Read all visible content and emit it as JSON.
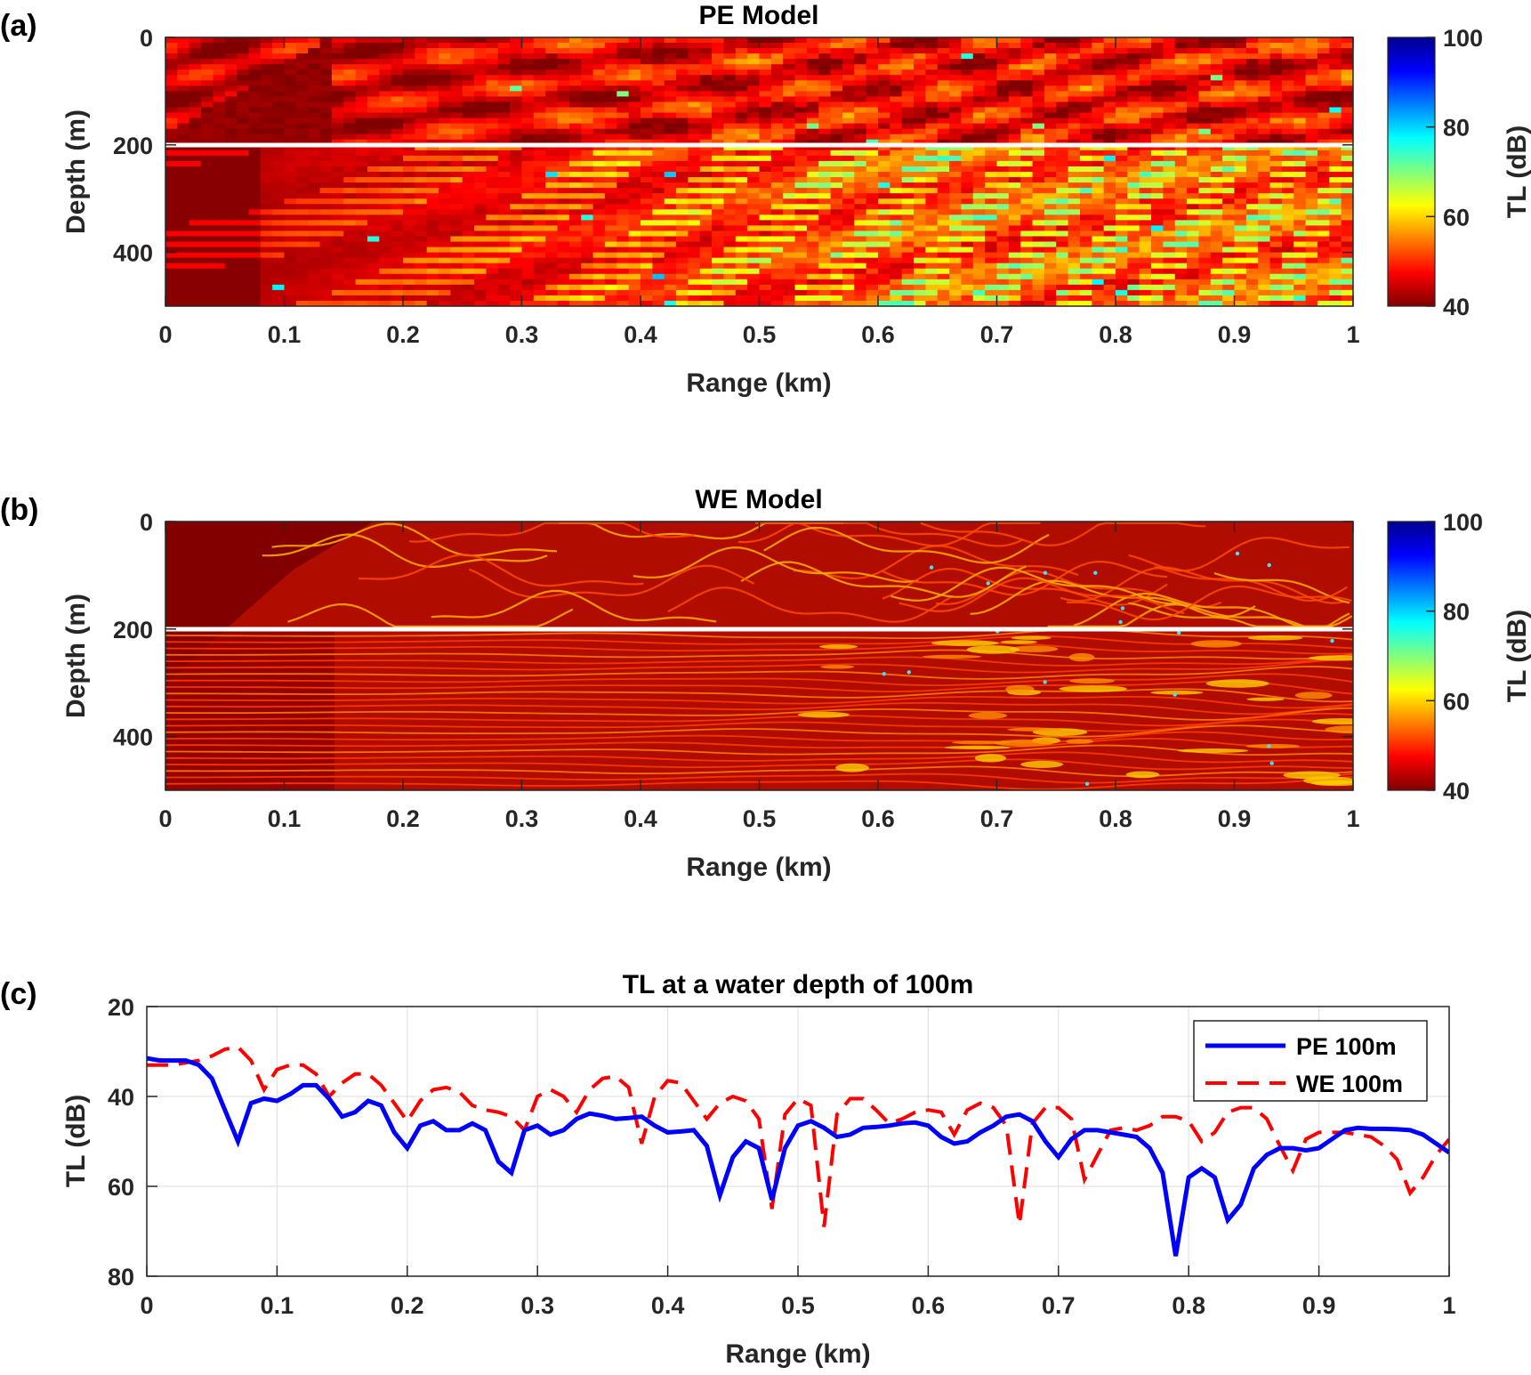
{
  "panels": {
    "a": {
      "label": "(a)"
    },
    "b": {
      "label": "(b)"
    },
    "c": {
      "label": "(c)"
    }
  },
  "colors": {
    "pe_line": "#0000ff",
    "we_line": "#ff0000",
    "interface_line": "#ffffff",
    "colormap": "jet (reversed): 40 dB dark red to 100 dB dark blue"
  },
  "chart_data": [
    {
      "type": "heatmap",
      "title": "PE Model",
      "xlabel": "Range (km)",
      "ylabel": "Depth (m)",
      "xlim": [
        0,
        1
      ],
      "ylim": [
        500,
        0
      ],
      "xticks": [
        "0",
        "0.1",
        "0.2",
        "0.3",
        "0.4",
        "0.5",
        "0.6",
        "0.7",
        "0.8",
        "0.9",
        "1"
      ],
      "yticks": [
        "0",
        "200",
        "400"
      ],
      "colorbar": {
        "label": "TL (dB)",
        "range": [
          40,
          100
        ],
        "ticks": [
          "40",
          "60",
          "80",
          "100"
        ]
      },
      "interface_depth": 200,
      "rendering": "blocky"
    },
    {
      "type": "heatmap",
      "title": "WE Model",
      "xlabel": "Range (km)",
      "ylabel": "Depth (m)",
      "xlim": [
        0,
        1
      ],
      "ylim": [
        500,
        0
      ],
      "xticks": [
        "0",
        "0.1",
        "0.2",
        "0.3",
        "0.4",
        "0.5",
        "0.6",
        "0.7",
        "0.8",
        "0.9",
        "1"
      ],
      "yticks": [
        "0",
        "200",
        "400"
      ],
      "colorbar": {
        "label": "TL (dB)",
        "range": [
          40,
          100
        ],
        "ticks": [
          "40",
          "60",
          "80",
          "100"
        ]
      },
      "interface_depth": 200,
      "rendering": "smooth"
    },
    {
      "type": "line",
      "title": "TL at a water depth of 100m",
      "xlabel": "Range (km)",
      "ylabel": "TL (dB)",
      "xlim": [
        0,
        1
      ],
      "ylim": [
        80,
        20
      ],
      "xticks": [
        "0",
        "0.1",
        "0.2",
        "0.3",
        "0.4",
        "0.5",
        "0.6",
        "0.7",
        "0.8",
        "0.9",
        "1"
      ],
      "yticks": [
        "20",
        "40",
        "60",
        "80"
      ],
      "grid": true,
      "legend_position": "top-right",
      "series": [
        {
          "name": "PE 100m",
          "style": "solid",
          "x": [
            0,
            0.01,
            0.02,
            0.03,
            0.04,
            0.05,
            0.06,
            0.07,
            0.08,
            0.09,
            0.1,
            0.11,
            0.12,
            0.13,
            0.14,
            0.15,
            0.16,
            0.17,
            0.18,
            0.19,
            0.2,
            0.21,
            0.22,
            0.23,
            0.24,
            0.25,
            0.26,
            0.27,
            0.28,
            0.29,
            0.3,
            0.31,
            0.32,
            0.33,
            0.34,
            0.35,
            0.36,
            0.37,
            0.38,
            0.39,
            0.4,
            0.41,
            0.42,
            0.43,
            0.44,
            0.45,
            0.46,
            0.47,
            0.48,
            0.49,
            0.5,
            0.51,
            0.52,
            0.53,
            0.54,
            0.55,
            0.56,
            0.57,
            0.58,
            0.59,
            0.6,
            0.61,
            0.62,
            0.63,
            0.64,
            0.65,
            0.66,
            0.67,
            0.68,
            0.69,
            0.7,
            0.71,
            0.72,
            0.73,
            0.74,
            0.75,
            0.76,
            0.77,
            0.78,
            0.79,
            0.8,
            0.81,
            0.82,
            0.83,
            0.84,
            0.85,
            0.86,
            0.87,
            0.88,
            0.89,
            0.9,
            0.91,
            0.92,
            0.93,
            0.94,
            0.95,
            0.96,
            0.97,
            0.98,
            0.99,
            1.0
          ],
          "y": [
            31.5,
            32,
            32,
            32,
            33,
            36,
            43,
            50,
            41.5,
            40.5,
            41,
            39.5,
            37.5,
            37.5,
            40.5,
            44.5,
            43.5,
            41,
            42,
            48,
            51.5,
            46.5,
            45.5,
            47.5,
            47.5,
            46,
            47.5,
            54.5,
            57,
            47.5,
            46.5,
            48.5,
            47.5,
            45,
            43.8,
            44.3,
            45,
            44.8,
            44.5,
            46.5,
            48,
            47.8,
            47.5,
            51,
            62,
            53.5,
            50,
            51.5,
            63,
            51.5,
            46.5,
            45.5,
            47,
            49,
            48.5,
            47,
            46.8,
            46.5,
            46,
            45.8,
            46.5,
            49,
            50.5,
            50,
            48,
            46.5,
            44.5,
            44,
            45.5,
            50,
            53.5,
            49.5,
            47.5,
            47.5,
            48,
            48.5,
            49,
            51.5,
            57,
            75.5,
            58,
            56,
            58,
            67.5,
            64,
            56,
            53,
            51.5,
            51.5,
            52,
            51.5,
            49.5,
            47.5,
            47,
            47.2,
            47.2,
            47.3,
            47.5,
            48.5,
            50.5,
            52.5
          ]
        },
        {
          "name": "WE 100m",
          "style": "dashed",
          "x": [
            0,
            0.01,
            0.02,
            0.03,
            0.04,
            0.05,
            0.06,
            0.07,
            0.08,
            0.09,
            0.1,
            0.11,
            0.12,
            0.13,
            0.14,
            0.15,
            0.16,
            0.17,
            0.18,
            0.19,
            0.2,
            0.21,
            0.22,
            0.23,
            0.24,
            0.25,
            0.26,
            0.27,
            0.28,
            0.29,
            0.3,
            0.31,
            0.32,
            0.33,
            0.34,
            0.35,
            0.36,
            0.37,
            0.38,
            0.39,
            0.4,
            0.41,
            0.42,
            0.43,
            0.44,
            0.45,
            0.46,
            0.47,
            0.48,
            0.49,
            0.5,
            0.51,
            0.52,
            0.53,
            0.54,
            0.55,
            0.56,
            0.57,
            0.58,
            0.59,
            0.6,
            0.61,
            0.62,
            0.63,
            0.64,
            0.65,
            0.66,
            0.67,
            0.68,
            0.69,
            0.7,
            0.71,
            0.72,
            0.73,
            0.74,
            0.75,
            0.76,
            0.77,
            0.78,
            0.79,
            0.8,
            0.81,
            0.82,
            0.83,
            0.84,
            0.85,
            0.86,
            0.87,
            0.88,
            0.89,
            0.9,
            0.91,
            0.92,
            0.93,
            0.94,
            0.95,
            0.96,
            0.97,
            0.98,
            0.99,
            1.0
          ],
          "y": [
            33,
            33,
            33,
            32.5,
            32,
            31,
            29.5,
            29,
            32,
            38.5,
            34,
            33,
            33,
            35,
            40,
            37,
            35,
            35,
            37.5,
            41.5,
            45.5,
            41,
            38.5,
            38,
            39,
            42,
            43,
            43.5,
            44.5,
            47.5,
            40,
            38.5,
            40,
            43.5,
            38.5,
            36,
            35.5,
            38,
            50.5,
            40,
            36.5,
            37,
            41,
            45,
            41.5,
            40,
            41,
            45,
            65,
            44,
            40.5,
            42,
            69,
            44,
            40.5,
            40.5,
            43,
            46,
            45,
            43.5,
            43,
            43.5,
            48.5,
            43,
            41.5,
            42.5,
            46.5,
            68.5,
            46,
            42.5,
            42.5,
            45,
            58.5,
            53,
            47.5,
            47,
            47.5,
            46.5,
            44.5,
            44.5,
            45.5,
            50,
            48,
            43.5,
            42.5,
            42.5,
            45,
            51,
            56.5,
            49.5,
            48,
            48,
            48,
            48.5,
            49,
            51,
            54,
            61.5,
            58,
            53,
            49.5
          ]
        }
      ]
    }
  ]
}
